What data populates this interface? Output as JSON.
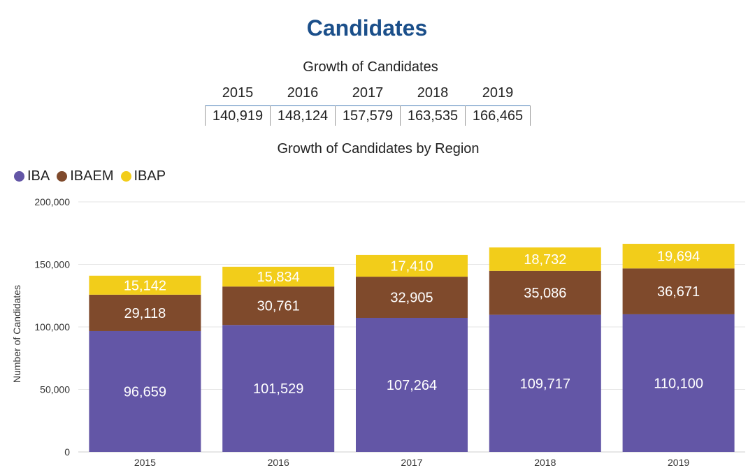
{
  "title": "Candidates",
  "growth_table": {
    "title": "Growth of Candidates",
    "years": [
      "2015",
      "2016",
      "2017",
      "2018",
      "2019"
    ],
    "totals": [
      "140,919",
      "148,124",
      "157,579",
      "163,535",
      "166,465"
    ]
  },
  "chart_data": {
    "type": "bar",
    "stacked": true,
    "title": "Growth of Candidates by Region",
    "xlabel": "",
    "ylabel": "Number of Candidates",
    "ylim": [
      0,
      200000
    ],
    "yticks": [
      0,
      50000,
      100000,
      150000,
      200000
    ],
    "ytick_labels": [
      "0",
      "50,000",
      "100,000",
      "150,000",
      "200,000"
    ],
    "categories": [
      "2015",
      "2016",
      "2017",
      "2018",
      "2019"
    ],
    "legend_position": "top-left",
    "grid": true,
    "series": [
      {
        "name": "IBA",
        "color": "#6356a6",
        "values": [
          96659,
          101529,
          107264,
          109717,
          110100
        ]
      },
      {
        "name": "IBAEM",
        "color": "#7f4a2c",
        "values": [
          29118,
          30761,
          32905,
          35086,
          36671
        ]
      },
      {
        "name": "IBAP",
        "color": "#f2cd1a",
        "values": [
          15142,
          15834,
          17410,
          18732,
          19694
        ]
      }
    ]
  }
}
